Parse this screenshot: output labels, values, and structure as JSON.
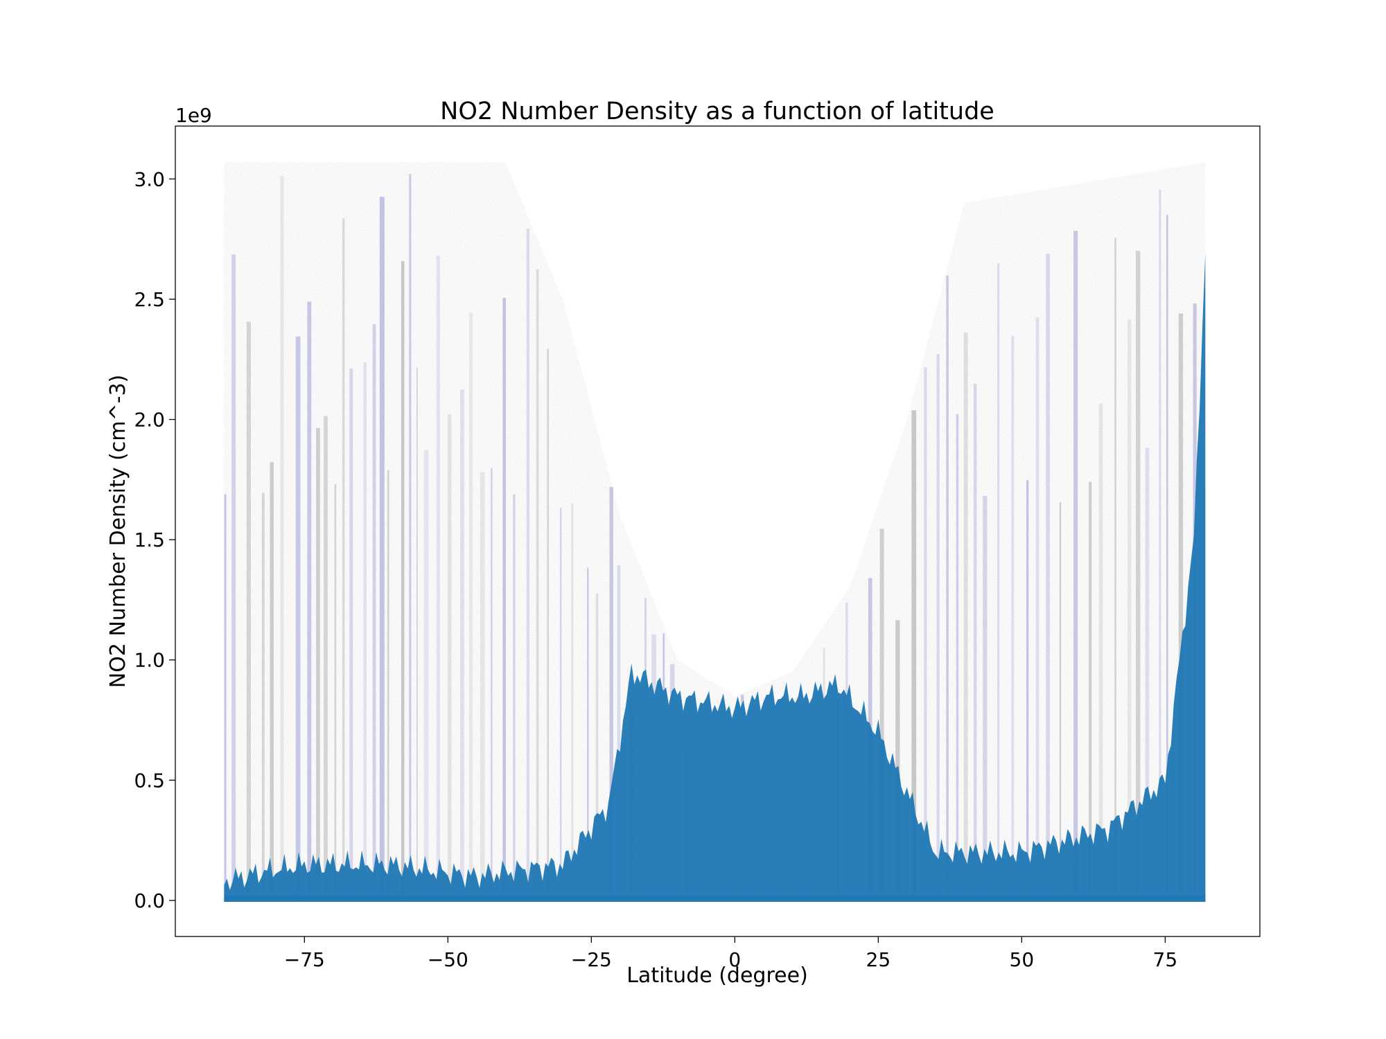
{
  "chart_data": {
    "type": "scatter",
    "title": "NO2 Number Density as a function of latitude",
    "xlabel": "Latitude (degree)",
    "ylabel": "NO2 Number Density (cm^-3)",
    "y_offset_label": "1e9",
    "xlim": [
      -97.5,
      91.5
    ],
    "ylim": [
      -0.15,
      3.22
    ],
    "x_ticks": [
      -75,
      -50,
      -25,
      0,
      25,
      50,
      75
    ],
    "x_tick_labels": [
      "−75",
      "−50",
      "−25",
      "0",
      "25",
      "50",
      "75"
    ],
    "y_ticks": [
      0.0,
      0.5,
      1.0,
      1.5,
      2.0,
      2.5,
      3.0
    ],
    "y_tick_labels": [
      "0.0",
      "0.5",
      "1.0",
      "1.5",
      "2.0",
      "2.5",
      "3.0"
    ],
    "grid": false,
    "colors": {
      "scatter_dense": "#1f77b4",
      "scatter_mid": "#7a7ac8",
      "scatter_sparse": "#8c8c8c"
    },
    "series": [
      {
        "x_range": [
          -89,
          82
        ],
        "y_max": 3.07,
        "dense_ceiling": [
          {
            "x": -89,
            "y": 0.08
          },
          {
            "x": -82,
            "y": 0.12
          },
          {
            "x": -75,
            "y": 0.15
          },
          {
            "x": -60,
            "y": 0.15
          },
          {
            "x": -45,
            "y": 0.1
          },
          {
            "x": -40,
            "y": 0.12
          },
          {
            "x": -30,
            "y": 0.15
          },
          {
            "x": -22,
            "y": 0.4
          },
          {
            "x": -18,
            "y": 0.95
          },
          {
            "x": -10,
            "y": 0.85
          },
          {
            "x": 0,
            "y": 0.8
          },
          {
            "x": 6,
            "y": 0.85
          },
          {
            "x": 12,
            "y": 0.85
          },
          {
            "x": 18,
            "y": 0.9
          },
          {
            "x": 25,
            "y": 0.7
          },
          {
            "x": 35,
            "y": 0.2
          },
          {
            "x": 50,
            "y": 0.2
          },
          {
            "x": 65,
            "y": 0.3
          },
          {
            "x": 75,
            "y": 0.5
          },
          {
            "x": 80,
            "y": 1.5
          },
          {
            "x": 82,
            "y": 2.7
          }
        ],
        "cloud_ceiling": [
          {
            "x": -89,
            "y": 3.07
          },
          {
            "x": -40,
            "y": 3.07
          },
          {
            "x": -30,
            "y": 2.5
          },
          {
            "x": -20,
            "y": 1.6
          },
          {
            "x": -10,
            "y": 1.0
          },
          {
            "x": 0,
            "y": 0.85
          },
          {
            "x": 10,
            "y": 0.95
          },
          {
            "x": 20,
            "y": 1.3
          },
          {
            "x": 30,
            "y": 2.0
          },
          {
            "x": 40,
            "y": 2.9
          },
          {
            "x": 82,
            "y": 3.07
          }
        ]
      }
    ]
  }
}
